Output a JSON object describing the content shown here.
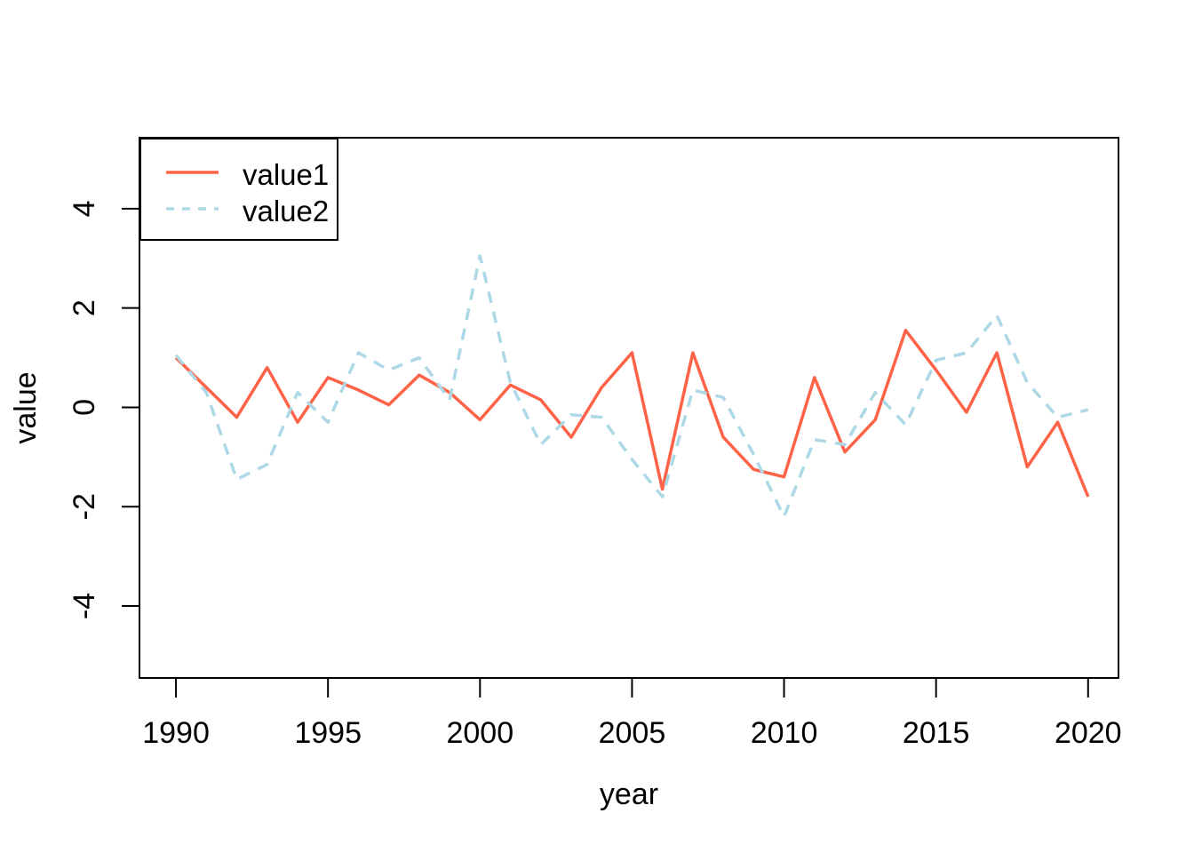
{
  "figure": {
    "background": "#ffffff",
    "axis_color": "#000000",
    "text_color": "#000000"
  },
  "chart_data": {
    "type": "line",
    "title": "",
    "xlabel": "year",
    "ylabel": "value",
    "grid": false,
    "legend_position": "topleft",
    "xlim": [
      1988.8,
      2021.0
    ],
    "ylim": [
      -5.45,
      5.43
    ],
    "x_ticks": [
      1990,
      1995,
      2000,
      2005,
      2010,
      2015,
      2020
    ],
    "y_ticks": [
      -4,
      -2,
      0,
      2,
      4
    ],
    "x": [
      1990,
      1991,
      1992,
      1993,
      1994,
      1995,
      1996,
      1997,
      1998,
      1999,
      2000,
      2001,
      2002,
      2003,
      2004,
      2005,
      2006,
      2007,
      2008,
      2009,
      2010,
      2011,
      2012,
      2013,
      2014,
      2015,
      2016,
      2017,
      2018,
      2019,
      2020
    ],
    "series": [
      {
        "name": "value1",
        "color": "#ff6347",
        "style": "solid",
        "values": [
          1.0,
          0.4,
          -0.2,
          0.8,
          -0.3,
          0.6,
          0.35,
          0.05,
          0.65,
          0.3,
          -0.25,
          0.45,
          0.15,
          -0.6,
          0.4,
          1.1,
          -1.65,
          1.1,
          -0.6,
          -1.25,
          -1.4,
          0.6,
          -0.9,
          -0.25,
          1.55,
          0.75,
          -0.1,
          1.1,
          -1.2,
          -0.3,
          -1.8
        ]
      },
      {
        "name": "value2",
        "color": "#add8e6",
        "style": "dashed",
        "values": [
          1.05,
          0.3,
          -1.45,
          -1.15,
          0.3,
          -0.3,
          1.1,
          0.75,
          1.0,
          0.15,
          3.05,
          0.5,
          -0.75,
          -0.15,
          -0.2,
          -1.05,
          -1.8,
          0.35,
          0.2,
          -0.95,
          -2.2,
          -0.65,
          -0.75,
          0.3,
          -0.35,
          0.95,
          1.1,
          1.85,
          0.5,
          -0.2,
          -0.05
        ]
      }
    ],
    "legend": {
      "entries": [
        {
          "label": "value1"
        },
        {
          "label": "value2"
        }
      ]
    }
  }
}
